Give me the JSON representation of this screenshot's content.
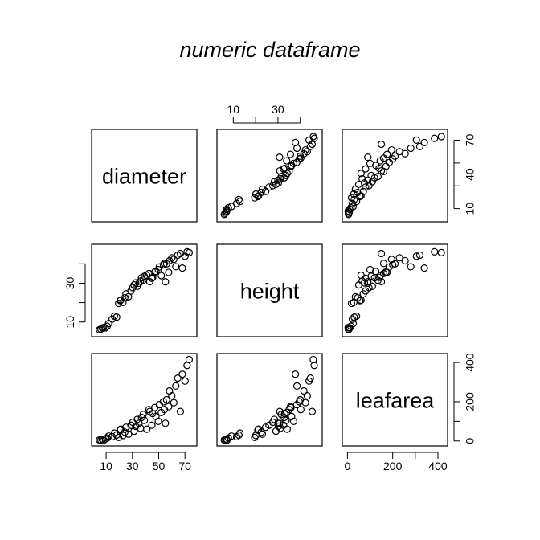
{
  "title": "numeric dataframe",
  "chart_data": {
    "type": "scatter",
    "variables": [
      "diameter",
      "height",
      "leafarea"
    ],
    "axes": {
      "diameter": {
        "range": [
          2,
          76
        ],
        "ticks": [
          10,
          30,
          50,
          70
        ],
        "bottom_tick_labels": [
          "10",
          "30",
          "50",
          "70"
        ],
        "right_tick_labels": [
          "10",
          "40",
          "70"
        ]
      },
      "height": {
        "range": [
          4.5,
          48
        ],
        "ticks": [
          10,
          20,
          30,
          40
        ],
        "top_tick_labels": [
          "10",
          "30"
        ],
        "left_tick_labels": [
          "10",
          "30"
        ]
      },
      "leafarea": {
        "range": [
          -5,
          425
        ],
        "ticks": [
          0,
          100,
          200,
          300,
          400
        ],
        "bottom_tick_labels": [
          "0",
          "200",
          "400"
        ],
        "right_tick_labels": [
          "0",
          "200",
          "400"
        ]
      }
    },
    "columns": {
      "diameter": [
        4.9,
        6.0,
        7.1,
        8.0,
        9.4,
        10.8,
        11.9,
        14.6,
        16.3,
        18.0,
        19.5,
        20.7,
        21.1,
        22.8,
        24.2,
        25.1,
        27.0,
        28.9,
        30.2,
        31.3,
        32.5,
        33.7,
        35.0,
        36.2,
        37.0,
        38.2,
        39.1,
        40.9,
        42.6,
        43.2,
        44.8,
        45.4,
        47.0,
        47.9,
        49.7,
        50.5,
        52.0,
        53.6,
        54.3,
        55.1,
        56.0,
        57.6,
        58.2,
        60.0,
        61.5,
        63.0,
        64.5,
        66.5,
        68.0,
        70.1,
        71.6,
        73.2
      ],
      "height": [
        6.0,
        6.3,
        6.9,
        7.1,
        7.0,
        7.8,
        9.2,
        11.5,
        13.0,
        12.5,
        19.6,
        21.0,
        21.3,
        20.1,
        22.5,
        24.5,
        23.0,
        26.0,
        27.7,
        29.1,
        30.2,
        28.4,
        30.0,
        31.1,
        32.8,
        31.5,
        33.6,
        34.1,
        35.0,
        30.8,
        32.5,
        33.0,
        35.8,
        36.1,
        37.0,
        38.4,
        33.9,
        39.5,
        40.2,
        30.7,
        40.0,
        35.6,
        41.6,
        43.1,
        42.3,
        38.5,
        44.5,
        45.3,
        37.8,
        43.9,
        46.2,
        45.8
      ],
      "leafarea": [
        5,
        4,
        8,
        3,
        10,
        15,
        25,
        22,
        40,
        30,
        18,
        55,
        60,
        28,
        45,
        70,
        35,
        80,
        95,
        50,
        75,
        110,
        90,
        65,
        120,
        135,
        105,
        60,
        160,
        150,
        80,
        140,
        170,
        125,
        100,
        185,
        145,
        200,
        160,
        90,
        210,
        175,
        255,
        230,
        195,
        280,
        320,
        150,
        340,
        305,
        385,
        415
      ]
    }
  }
}
